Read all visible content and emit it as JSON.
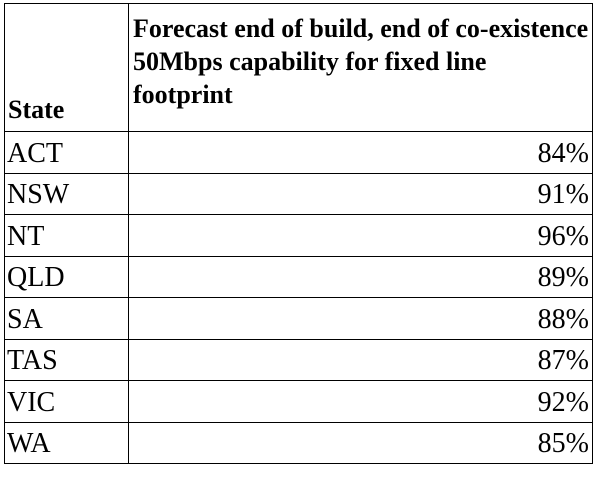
{
  "table": {
    "headers": {
      "state": "State",
      "value": "Forecast end of build, end of co-existence 50Mbps capability for fixed line footprint"
    },
    "rows": [
      {
        "state": "ACT",
        "value": "84%"
      },
      {
        "state": "NSW",
        "value": "91%"
      },
      {
        "state": "NT",
        "value": "96%"
      },
      {
        "state": "QLD",
        "value": "89%"
      },
      {
        "state": "SA",
        "value": "88%"
      },
      {
        "state": "TAS",
        "value": "87%"
      },
      {
        "state": "VIC",
        "value": "92%"
      },
      {
        "state": "WA",
        "value": "85%"
      }
    ]
  }
}
